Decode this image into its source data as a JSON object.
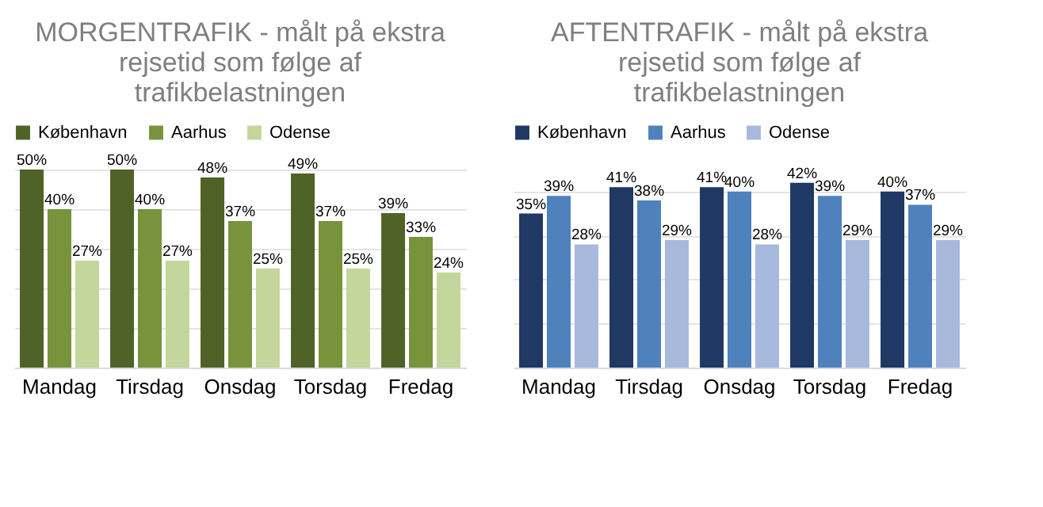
{
  "chart_data": [
    {
      "type": "bar",
      "title": "MORGENTRAFIK - målt på ekstra rejsetid som følge af trafikbelastningen",
      "categories": [
        "Mandag",
        "Tirsdag",
        "Onsdag",
        "Torsdag",
        "Fredag"
      ],
      "series": [
        {
          "name": "København",
          "color": "#4f6228",
          "values": [
            50,
            50,
            48,
            49,
            39
          ],
          "value_labels": [
            "50%",
            "50%",
            "48%",
            "49%",
            "39%"
          ]
        },
        {
          "name": "Aarhus",
          "color": "#77933c",
          "values": [
            40,
            40,
            37,
            37,
            33
          ],
          "value_labels": [
            "40%",
            "40%",
            "37%",
            "37%",
            "33%"
          ]
        },
        {
          "name": "Odense",
          "color": "#c3d69b",
          "values": [
            27,
            27,
            25,
            25,
            24
          ],
          "value_labels": [
            "27%",
            "27%",
            "25%",
            "25%",
            "24%"
          ]
        }
      ],
      "grid": "y",
      "legend": "top",
      "tick_labels": "x"
    },
    {
      "type": "bar",
      "title": "AFTENTRAFIK - målt på ekstra rejsetid som følge af trafikbelastningen",
      "categories": [
        "Mandag",
        "Tirsdag",
        "Onsdag",
        "Torsdag",
        "Fredag"
      ],
      "series": [
        {
          "name": "København",
          "color": "#1f3864",
          "values": [
            35,
            41,
            41,
            42,
            40
          ],
          "value_labels": [
            "35%",
            "41%",
            "41%",
            "42%",
            "40%"
          ]
        },
        {
          "name": "Aarhus",
          "color": "#4f81bd",
          "values": [
            39,
            38,
            40,
            39,
            37
          ],
          "value_labels": [
            "39%",
            "38%",
            "40%",
            "39%",
            "37%"
          ]
        },
        {
          "name": "Odense",
          "color": "#a7b9dd",
          "values": [
            28,
            29,
            28,
            29,
            29
          ],
          "value_labels": [
            "28%",
            "29%",
            "28%",
            "29%",
            "29%"
          ]
        }
      ],
      "grid": "y",
      "legend": "top",
      "tick_labels": "x"
    }
  ]
}
